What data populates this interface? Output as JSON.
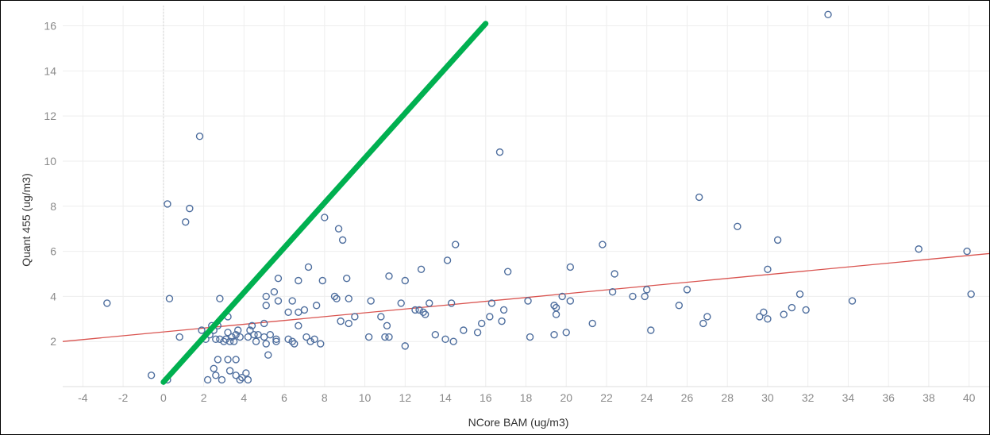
{
  "chart_data": {
    "type": "scatter",
    "xlabel": "NCore BAM (ug/m3)",
    "ylabel": "Quant 455 (ug/m3)",
    "xlim": [
      -5,
      41
    ],
    "ylim": [
      0,
      16.9
    ],
    "x_ticks": [
      -4,
      -2,
      0,
      2,
      4,
      6,
      8,
      10,
      12,
      14,
      16,
      18,
      20,
      22,
      24,
      26,
      28,
      30,
      32,
      34,
      36,
      38,
      40
    ],
    "y_ticks": [
      2,
      4,
      6,
      8,
      10,
      12,
      14,
      16
    ],
    "grid": true,
    "colors": {
      "points": "#4e6e9e",
      "trend": "#d9534f",
      "reference": "#00b050",
      "grid": "#eeeeee"
    },
    "reference_line": {
      "x": [
        0,
        16
      ],
      "y": [
        0.2,
        16.1
      ]
    },
    "trend_line": {
      "x": [
        -5,
        41
      ],
      "y": [
        2.0,
        5.9
      ]
    },
    "points": [
      [
        -2.8,
        3.7
      ],
      [
        -0.6,
        0.5
      ],
      [
        0.2,
        8.1
      ],
      [
        0.3,
        3.9
      ],
      [
        0.2,
        0.3
      ],
      [
        0.8,
        2.2
      ],
      [
        1.1,
        7.3
      ],
      [
        1.3,
        7.9
      ],
      [
        1.8,
        11.1
      ],
      [
        1.9,
        2.5
      ],
      [
        2.1,
        2.1
      ],
      [
        2.2,
        0.3
      ],
      [
        2.3,
        2.3
      ],
      [
        2.4,
        2.7
      ],
      [
        2.5,
        2.5
      ],
      [
        2.6,
        2.1
      ],
      [
        2.5,
        0.8
      ],
      [
        2.6,
        0.5
      ],
      [
        2.7,
        1.2
      ],
      [
        2.7,
        2.7
      ],
      [
        2.8,
        3.9
      ],
      [
        2.8,
        2.1
      ],
      [
        2.9,
        0.3
      ],
      [
        3.0,
        2.0
      ],
      [
        3.1,
        2.1
      ],
      [
        3.2,
        3.1
      ],
      [
        3.2,
        2.4
      ],
      [
        3.2,
        1.2
      ],
      [
        3.3,
        2.0
      ],
      [
        3.3,
        0.7
      ],
      [
        3.4,
        2.2
      ],
      [
        3.5,
        2.0
      ],
      [
        3.6,
        2.3
      ],
      [
        3.6,
        1.2
      ],
      [
        3.7,
        2.5
      ],
      [
        3.8,
        2.2
      ],
      [
        3.6,
        0.5
      ],
      [
        3.8,
        0.3
      ],
      [
        3.9,
        0.4
      ],
      [
        4.1,
        0.6
      ],
      [
        4.2,
        0.3
      ],
      [
        4.2,
        2.2
      ],
      [
        4.3,
        2.5
      ],
      [
        4.4,
        2.7
      ],
      [
        4.5,
        2.3
      ],
      [
        4.6,
        2.0
      ],
      [
        4.7,
        2.3
      ],
      [
        5.0,
        2.8
      ],
      [
        5.0,
        2.2
      ],
      [
        5.1,
        1.9
      ],
      [
        5.1,
        3.6
      ],
      [
        5.1,
        4.0
      ],
      [
        5.2,
        1.4
      ],
      [
        5.3,
        2.3
      ],
      [
        5.5,
        4.2
      ],
      [
        5.6,
        2.0
      ],
      [
        5.6,
        2.1
      ],
      [
        5.7,
        3.8
      ],
      [
        5.7,
        4.8
      ],
      [
        6.2,
        3.3
      ],
      [
        6.2,
        2.1
      ],
      [
        6.4,
        2.0
      ],
      [
        6.4,
        3.8
      ],
      [
        6.5,
        1.9
      ],
      [
        6.7,
        3.3
      ],
      [
        6.7,
        2.7
      ],
      [
        6.7,
        4.7
      ],
      [
        7.0,
        3.4
      ],
      [
        7.1,
        2.2
      ],
      [
        7.2,
        5.3
      ],
      [
        7.3,
        2.0
      ],
      [
        7.5,
        2.1
      ],
      [
        7.6,
        3.6
      ],
      [
        7.8,
        1.9
      ],
      [
        7.9,
        4.7
      ],
      [
        8.0,
        7.5
      ],
      [
        8.5,
        4.0
      ],
      [
        8.6,
        3.9
      ],
      [
        8.7,
        7.0
      ],
      [
        8.8,
        2.9
      ],
      [
        8.9,
        6.5
      ],
      [
        9.1,
        4.8
      ],
      [
        9.2,
        2.8
      ],
      [
        9.2,
        3.9
      ],
      [
        9.5,
        3.1
      ],
      [
        10.2,
        2.2
      ],
      [
        10.3,
        3.8
      ],
      [
        10.8,
        3.1
      ],
      [
        11.0,
        2.2
      ],
      [
        11.1,
        2.7
      ],
      [
        11.2,
        2.2
      ],
      [
        11.2,
        4.9
      ],
      [
        11.8,
        3.7
      ],
      [
        12.0,
        1.8
      ],
      [
        12.0,
        4.7
      ],
      [
        12.5,
        3.4
      ],
      [
        12.7,
        3.4
      ],
      [
        12.8,
        5.2
      ],
      [
        12.9,
        3.3
      ],
      [
        13.0,
        3.2
      ],
      [
        13.2,
        3.7
      ],
      [
        13.5,
        2.3
      ],
      [
        14.0,
        2.1
      ],
      [
        14.1,
        5.6
      ],
      [
        14.3,
        3.7
      ],
      [
        14.4,
        2.0
      ],
      [
        14.5,
        6.3
      ],
      [
        14.9,
        2.5
      ],
      [
        15.6,
        2.4
      ],
      [
        15.8,
        2.8
      ],
      [
        16.2,
        3.1
      ],
      [
        16.3,
        3.7
      ],
      [
        16.7,
        10.4
      ],
      [
        16.8,
        2.9
      ],
      [
        16.9,
        3.4
      ],
      [
        17.1,
        5.1
      ],
      [
        18.1,
        3.8
      ],
      [
        18.2,
        2.2
      ],
      [
        19.4,
        3.6
      ],
      [
        19.4,
        2.3
      ],
      [
        19.5,
        3.5
      ],
      [
        19.5,
        3.2
      ],
      [
        19.8,
        4.0
      ],
      [
        20.0,
        2.4
      ],
      [
        20.2,
        3.8
      ],
      [
        20.2,
        5.3
      ],
      [
        21.3,
        2.8
      ],
      [
        21.8,
        6.3
      ],
      [
        22.3,
        4.2
      ],
      [
        22.4,
        5.0
      ],
      [
        23.3,
        4.0
      ],
      [
        23.9,
        4.0
      ],
      [
        24.0,
        4.3
      ],
      [
        24.2,
        2.5
      ],
      [
        25.6,
        3.6
      ],
      [
        26.0,
        4.3
      ],
      [
        26.6,
        8.4
      ],
      [
        26.8,
        2.8
      ],
      [
        27.0,
        3.1
      ],
      [
        28.5,
        7.1
      ],
      [
        29.6,
        3.1
      ],
      [
        29.8,
        3.3
      ],
      [
        30.0,
        3.0
      ],
      [
        30.0,
        5.2
      ],
      [
        30.5,
        6.5
      ],
      [
        30.8,
        3.2
      ],
      [
        31.2,
        3.5
      ],
      [
        31.6,
        4.1
      ],
      [
        31.9,
        3.4
      ],
      [
        33.0,
        16.5
      ],
      [
        34.2,
        3.8
      ],
      [
        37.5,
        6.1
      ],
      [
        39.9,
        6.0
      ],
      [
        40.1,
        4.1
      ]
    ]
  }
}
